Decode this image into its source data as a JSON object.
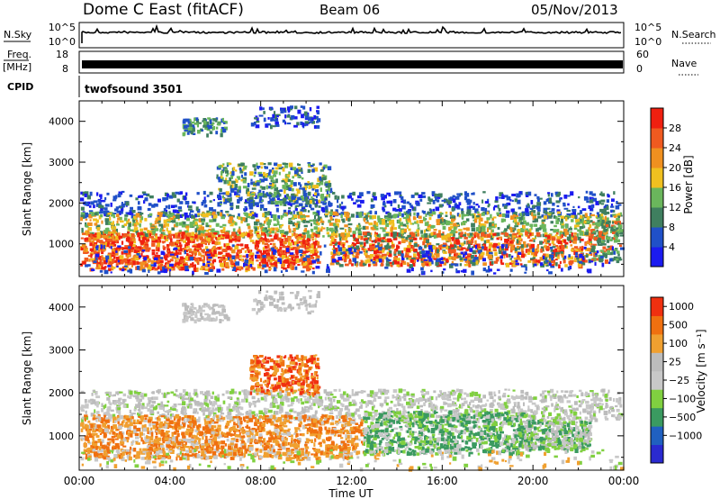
{
  "header": {
    "station": "Dome C East (fitACF)",
    "beam": "Beam 06",
    "date": "05/Nov/2013"
  },
  "noise_panel": {
    "left_label": "N.Sky",
    "left_ticks": [
      "10^5",
      "10^0"
    ],
    "right_label": "N.Search",
    "right_ticks": [
      "10^5",
      "10^0"
    ]
  },
  "freq_panel": {
    "left_label_1": "Freq.",
    "left_label_2": "[MHz]",
    "left_ticks": [
      "18",
      "8"
    ],
    "right_label": "Nave",
    "right_ticks": [
      "60",
      "0"
    ]
  },
  "cpid": {
    "label": "CPID",
    "value": "twofsound 3501"
  },
  "colors": {
    "power_scale": [
      "#1b1bf0",
      "#2050c8",
      "#3f7f5f",
      "#6ab65c",
      "#f0c020",
      "#f09020",
      "#f05a20",
      "#f02010"
    ],
    "velocity_scale": [
      "#2a2ad0",
      "#2060c0",
      "#3a9a60",
      "#80d040",
      "#c8c8c8",
      "#bcbcbc",
      "#f0a030",
      "#f07010",
      "#f03010"
    ]
  },
  "chart_data": [
    {
      "type": "heatmap",
      "name": "power",
      "ylabel": "Slant Range [km]",
      "yticks": [
        "1000",
        "2000",
        "3000",
        "4000"
      ],
      "ylim": [
        200,
        4500
      ],
      "xticks": [
        "00:00",
        "04:00",
        "08:00",
        "12:00",
        "16:00",
        "20:00",
        "00:00"
      ],
      "colorbar_label": "Power [dB]",
      "colorbar_ticks": [
        "4",
        "8",
        "12",
        "16",
        "20",
        "24",
        "28"
      ]
    },
    {
      "type": "heatmap",
      "name": "velocity",
      "ylabel": "Slant Range [km]",
      "yticks": [
        "1000",
        "2000",
        "3000",
        "4000"
      ],
      "ylim": [
        200,
        4500
      ],
      "xticks": [
        "00:00",
        "04:00",
        "08:00",
        "12:00",
        "16:00",
        "20:00",
        "00:00"
      ],
      "xlabel": "Time UT",
      "colorbar_label": "Velocity [m s⁻¹]",
      "colorbar_ticks": [
        "1000",
        "500",
        "100",
        "25",
        "−25",
        "−100",
        "−500",
        "−1000"
      ]
    }
  ]
}
